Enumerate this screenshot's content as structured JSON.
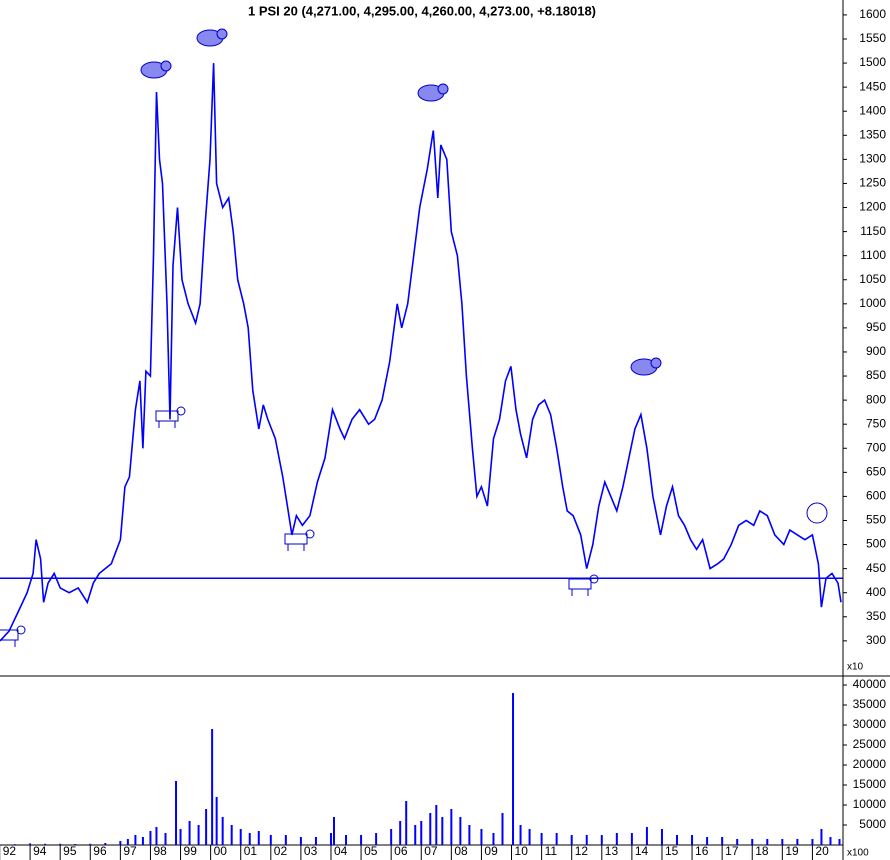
{
  "chart_data": [
    {
      "type": "line",
      "title": "1 PSI 20 (4,271.00, 4,295.00, 4,260.00, 4,273.00, +8.18018)",
      "xlim": [
        1993,
        2020.95
      ],
      "ylim": [
        227,
        1631
      ],
      "yticks": [
        300,
        350,
        400,
        450,
        500,
        550,
        600,
        650,
        700,
        750,
        800,
        850,
        900,
        950,
        1000,
        1050,
        1100,
        1150,
        1200,
        1250,
        1300,
        1350,
        1400,
        1450,
        1500,
        1550,
        1600
      ],
      "hline": 430,
      "series": [
        {
          "color": "#0000ff",
          "x": [
            1993.0,
            1993.3,
            1993.6,
            1993.9,
            1994.1,
            1994.2,
            1994.35,
            1994.45,
            1994.6,
            1994.8,
            1995.0,
            1995.3,
            1995.6,
            1995.9,
            1996.1,
            1996.3,
            1996.7,
            1997.0,
            1997.15,
            1997.3,
            1997.5,
            1997.65,
            1997.75,
            1997.85,
            1998.0,
            1998.1,
            1998.2,
            1998.3,
            1998.4,
            1998.55,
            1998.65,
            1998.75,
            1998.9,
            1999.05,
            1999.25,
            1999.5,
            1999.65,
            1999.8,
            1999.98,
            2000.1,
            2000.2,
            2000.4,
            2000.6,
            2000.75,
            2000.9,
            2001.1,
            2001.25,
            2001.4,
            2001.6,
            2001.75,
            2001.9,
            2002.15,
            2002.4,
            2002.55,
            2002.7,
            2002.85,
            2003.05,
            2003.3,
            2003.55,
            2003.8,
            2004.05,
            2004.3,
            2004.45,
            2004.7,
            2004.95,
            2005.25,
            2005.45,
            2005.7,
            2005.95,
            2006.2,
            2006.35,
            2006.55,
            2006.75,
            2006.95,
            2007.2,
            2007.4,
            2007.55,
            2007.65,
            2007.85,
            2008.0,
            2008.2,
            2008.35,
            2008.5,
            2008.7,
            2008.85,
            2009.0,
            2009.2,
            2009.4,
            2009.6,
            2009.8,
            2009.98,
            2010.15,
            2010.3,
            2010.5,
            2010.7,
            2010.9,
            2011.1,
            2011.3,
            2011.5,
            2011.7,
            2011.85,
            2012.05,
            2012.3,
            2012.5,
            2012.7,
            2012.9,
            2013.1,
            2013.3,
            2013.5,
            2013.7,
            2013.9,
            2014.1,
            2014.3,
            2014.5,
            2014.7,
            2014.95,
            2015.15,
            2015.35,
            2015.55,
            2015.75,
            2015.95,
            2016.15,
            2016.35,
            2016.6,
            2016.85,
            2017.05,
            2017.3,
            2017.55,
            2017.8,
            2018.05,
            2018.25,
            2018.5,
            2018.75,
            2019.05,
            2019.25,
            2019.5,
            2019.75,
            2020.0,
            2020.2,
            2020.3,
            2020.45,
            2020.65,
            2020.85,
            2020.95
          ],
          "values": [
            300,
            320,
            360,
            400,
            440,
            510,
            470,
            380,
            420,
            440,
            410,
            400,
            410,
            380,
            420,
            440,
            460,
            510,
            620,
            640,
            780,
            840,
            700,
            860,
            850,
            1100,
            1440,
            1300,
            1250,
            1000,
            760,
            1080,
            1200,
            1050,
            1000,
            960,
            1000,
            1150,
            1300,
            1500,
            1250,
            1200,
            1220,
            1150,
            1050,
            1000,
            950,
            820,
            740,
            790,
            760,
            720,
            640,
            580,
            520,
            560,
            540,
            560,
            630,
            680,
            780,
            740,
            720,
            760,
            780,
            750,
            760,
            800,
            880,
            1000,
            950,
            1000,
            1100,
            1200,
            1280,
            1360,
            1220,
            1330,
            1300,
            1150,
            1100,
            1000,
            850,
            700,
            600,
            620,
            580,
            720,
            760,
            840,
            870,
            780,
            730,
            680,
            760,
            790,
            800,
            770,
            700,
            620,
            570,
            560,
            520,
            450,
            500,
            580,
            630,
            600,
            570,
            620,
            680,
            740,
            770,
            700,
            600,
            520,
            580,
            620,
            560,
            540,
            510,
            490,
            510,
            450,
            460,
            470,
            500,
            540,
            550,
            540,
            570,
            560,
            520,
            500,
            530,
            520,
            510,
            520,
            460,
            370,
            430,
            440,
            420,
            380
          ]
        }
      ]
    },
    {
      "type": "bar",
      "xlim": [
        1993,
        2020.95
      ],
      "ylim": [
        0,
        42000
      ],
      "yticks": [
        5000,
        10000,
        15000,
        20000,
        25000,
        30000,
        35000,
        40000
      ],
      "xticks": [
        {
          "value": 1992.99,
          "label": "92"
        },
        {
          "value": 1994,
          "label": "94"
        },
        {
          "value": 1995,
          "label": "95"
        },
        {
          "value": 1996,
          "label": "96"
        },
        {
          "value": 1997,
          "label": "97"
        },
        {
          "value": 1998,
          "label": "98"
        },
        {
          "value": 1999,
          "label": "99"
        },
        {
          "value": 2000,
          "label": "00"
        },
        {
          "value": 2001,
          "label": "01"
        },
        {
          "value": 2002,
          "label": "02"
        },
        {
          "value": 2003,
          "label": "03"
        },
        {
          "value": 2004,
          "label": "04"
        },
        {
          "value": 2005,
          "label": "05"
        },
        {
          "value": 2006,
          "label": "06"
        },
        {
          "value": 2007,
          "label": "07"
        },
        {
          "value": 2008,
          "label": "08"
        },
        {
          "value": 2009,
          "label": "09"
        },
        {
          "value": 2010,
          "label": "10"
        },
        {
          "value": 2011,
          "label": "11"
        },
        {
          "value": 2012,
          "label": "12"
        },
        {
          "value": 2013,
          "label": "13"
        },
        {
          "value": 2014,
          "label": "14"
        },
        {
          "value": 2015,
          "label": "15"
        },
        {
          "value": 2016,
          "label": "16"
        },
        {
          "value": 2017,
          "label": "17"
        },
        {
          "value": 2018,
          "label": "18"
        },
        {
          "value": 2019,
          "label": "19"
        },
        {
          "value": 2020,
          "label": "20"
        }
      ],
      "annotations": [
        "x10",
        "x100"
      ],
      "color": "#0000ff",
      "x": [
        1993.5,
        1994,
        1994.5,
        1995,
        1995.5,
        1996,
        1996.5,
        1997,
        1997.25,
        1997.5,
        1997.75,
        1998,
        1998.2,
        1998.5,
        1998.85,
        1999,
        1999.3,
        1999.6,
        1999.85,
        2000.05,
        2000.2,
        2000.4,
        2000.7,
        2001,
        2001.3,
        2001.6,
        2002,
        2002.5,
        2003,
        2003.5,
        2004,
        2004.1,
        2004.5,
        2005,
        2005.5,
        2006,
        2006.3,
        2006.5,
        2006.8,
        2007,
        2007.3,
        2007.5,
        2007.7,
        2008,
        2008.3,
        2008.6,
        2009,
        2009.4,
        2009.7,
        2010.05,
        2010.3,
        2010.6,
        2011,
        2011.5,
        2012,
        2012.5,
        2013,
        2013.5,
        2014,
        2014.5,
        2015,
        2015.5,
        2016,
        2016.5,
        2017,
        2017.5,
        2018,
        2018.5,
        2019,
        2019.5,
        2020,
        2020.3,
        2020.6,
        2020.9
      ],
      "values": [
        200,
        400,
        300,
        300,
        250,
        300,
        500,
        1000,
        1500,
        2500,
        2000,
        3500,
        4500,
        3000,
        16000,
        4000,
        6000,
        5000,
        9000,
        29000,
        12000,
        7000,
        5000,
        4000,
        3000,
        3500,
        2500,
        2500,
        2000,
        2000,
        3000,
        7000,
        2500,
        2500,
        3000,
        4000,
        6000,
        11000,
        5000,
        6000,
        8000,
        10000,
        7000,
        9000,
        7000,
        5000,
        4000,
        3000,
        8000,
        38000,
        5000,
        4000,
        3000,
        3000,
        2500,
        2500,
        2500,
        3000,
        3000,
        4500,
        4000,
        2500,
        2500,
        2000,
        2000,
        1500,
        1500,
        1500,
        1500,
        1500,
        1500,
        4000,
        2000,
        1500
      ]
    }
  ]
}
